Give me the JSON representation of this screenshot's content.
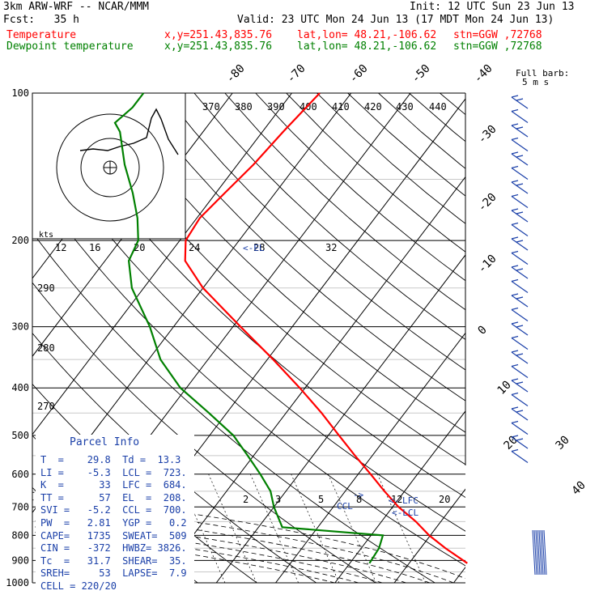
{
  "header": {
    "model": "3km ARW-WRF -- NCAR/MMM",
    "init": "Init: 12 UTC Sun 23 Jun 13",
    "fcst": "Fcst:   35 h",
    "valid": "Valid: 23 UTC Mon 24 Jun 13 (17 MDT Mon 24 Jun 13)",
    "temp_line": {
      "label": "Temperature",
      "xy": "x,y=251.43,835.76",
      "latlon": "lat,lon= 48.21,-106.62",
      "stn": "stn=GGW ,72768"
    },
    "dew_line": {
      "label": "Dewpoint temperature",
      "xy": "x,y=251.43,835.76",
      "latlon": "lat,lon= 48.21,-106.62",
      "stn": "stn=GGW ,72768"
    }
  },
  "barb_legend": {
    "line1": "Full barb:",
    "line2": "5 m s"
  },
  "hodograph": {
    "units": "kts",
    "ring_labels": [
      "12",
      "16",
      "20",
      "24",
      "28",
      "32"
    ]
  },
  "inset_labels": {
    "theta_e": [
      "370",
      "380",
      "390",
      "400",
      "410",
      "420",
      "430",
      "440"
    ]
  },
  "axis_labels": {
    "pressure": [
      "100",
      "200",
      "300",
      "400",
      "500",
      "600",
      "700",
      "800",
      "900",
      "1000"
    ],
    "temp_top": [
      "-80",
      "-70",
      "-60",
      "-50",
      "-40"
    ],
    "temp_right": [
      "-30",
      "-20",
      "-10",
      "0",
      "10",
      "20",
      "30",
      "40"
    ],
    "theta_left": [
      "290",
      "280",
      "270"
    ],
    "mixing_ratio": [
      "2",
      "3",
      "5",
      "8",
      "12",
      "20"
    ]
  },
  "levels": {
    "lfc": "LFC",
    "lcl": "<-LCL",
    "ccl": "CCL",
    "ccl_arrow": "->",
    "el_marker": "<-EL",
    "lfc_arrow": "<-"
  },
  "parcel_info": {
    "title": "Parcel Info",
    "rows": [
      "T  =    29.8  Td =  13.3",
      "LI =    -5.3  LCL =  723.",
      "K  =      33  LFC =  684.",
      "TT =      57  EL  =  208.",
      "SVI =   -5.2  CCL =  700.",
      "PW  =   2.81  YGP =   0.2",
      "CAPE=   1735  SWEAT=  509",
      "CIN =   -372  HWBZ= 3826.",
      "Tc  =   31.7  SHEAR=  35.",
      "SREH=     53  LAPSE=  7.9",
      "CELL = 220/20"
    ]
  },
  "chart_data": {
    "type": "line",
    "title": "",
    "xlabel": "",
    "ylabel": "",
    "y_scale": "log",
    "ylim": [
      1000,
      100
    ],
    "series": [
      {
        "name": "Temperature",
        "color": "#ff0000",
        "pressure_hPa": [
          912,
          850,
          800,
          750,
          700,
          650,
          600,
          550,
          500,
          450,
          400,
          350,
          300,
          250,
          220,
          200,
          180,
          160,
          140,
          120,
          100
        ],
        "temp_C": [
          29.8,
          24.2,
          19.8,
          15.8,
          11.0,
          6.6,
          2.1,
          -2.9,
          -8.2,
          -14.0,
          -20.9,
          -29.0,
          -38.7,
          -50.0,
          -56.5,
          -59.0,
          -59.5,
          -58.5,
          -57.3,
          -56.5,
          -55.3
        ]
      },
      {
        "name": "Dewpoint temperature",
        "color": "#008000",
        "pressure_hPa": [
          912,
          850,
          800,
          770,
          700,
          650,
          600,
          550,
          500,
          450,
          400,
          350,
          300,
          250,
          220,
          200,
          180,
          160,
          140,
          120,
          115,
          107,
          100
        ],
        "dewpoint_C": [
          13.3,
          13.0,
          12.0,
          -6.0,
          -10.0,
          -12.6,
          -16.5,
          -21.0,
          -26.0,
          -33.0,
          -41.0,
          -48.0,
          -54.0,
          -62.0,
          -66.0,
          -67.0,
          -70.0,
          -74.0,
          -79.0,
          -84.0,
          -86.0,
          -85.0,
          -85.0
        ]
      }
    ]
  },
  "colors": {
    "temperature": "#ff0000",
    "dewpoint": "#008000",
    "isobar": "#000000",
    "parcel_text": "#1a3fa8",
    "barb": "#1a3fa8"
  }
}
